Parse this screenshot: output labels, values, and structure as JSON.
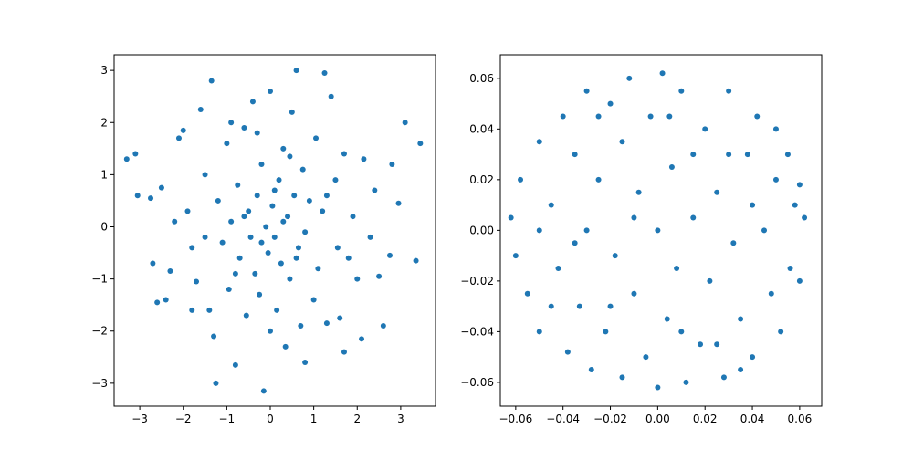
{
  "chart_data": [
    {
      "type": "scatter",
      "color": "#1f77b4",
      "x": [
        -3.3,
        -3.1,
        -3.05,
        -2.75,
        -2.5,
        -2.6,
        -2.7,
        -2.4,
        -2.3,
        -2.1,
        -2.0,
        -1.9,
        -1.8,
        -1.7,
        -1.6,
        -1.5,
        -1.4,
        -1.35,
        -1.3,
        -1.25,
        -1.2,
        -1.1,
        -1.0,
        -0.95,
        -0.9,
        -0.8,
        -0.75,
        -0.7,
        -0.6,
        -0.55,
        -0.5,
        -0.45,
        -0.4,
        -0.35,
        -0.3,
        -0.25,
        -0.2,
        -0.15,
        -0.1,
        -0.05,
        0.0,
        0.05,
        0.1,
        0.15,
        0.2,
        0.25,
        0.3,
        0.35,
        0.4,
        0.45,
        0.5,
        0.55,
        0.6,
        0.65,
        0.7,
        0.75,
        0.8,
        0.9,
        1.0,
        1.05,
        1.1,
        1.2,
        1.25,
        1.3,
        1.4,
        1.5,
        1.55,
        1.6,
        1.7,
        1.8,
        1.9,
        2.0,
        2.1,
        2.15,
        2.3,
        2.4,
        2.5,
        2.6,
        2.75,
        2.95,
        3.1,
        3.35,
        3.45,
        -0.6,
        0.3,
        -0.2,
        0.6,
        -0.8,
        0.1,
        -1.5,
        1.3,
        -0.3,
        0.8,
        -2.2,
        2.8,
        -1.8,
        1.7,
        -0.9,
        0.0,
        0.45
      ],
      "y": [
        1.3,
        1.4,
        0.6,
        0.55,
        0.75,
        -1.45,
        -0.7,
        -1.4,
        -0.85,
        1.7,
        1.85,
        0.3,
        -0.4,
        -1.05,
        2.25,
        1.0,
        -1.6,
        2.8,
        -2.1,
        -3.0,
        0.5,
        -0.3,
        1.6,
        -1.2,
        0.1,
        -2.65,
        0.8,
        -0.6,
        1.9,
        -1.7,
        0.3,
        -0.2,
        2.4,
        -0.9,
        0.6,
        -1.3,
        1.2,
        -3.15,
        0.0,
        -0.5,
        2.6,
        0.4,
        -0.2,
        -1.6,
        0.9,
        -0.7,
        1.5,
        -2.3,
        0.2,
        -1.0,
        2.2,
        0.6,
        3.0,
        -0.4,
        -1.9,
        1.1,
        -0.1,
        0.5,
        -1.4,
        1.7,
        -0.8,
        0.3,
        2.95,
        -1.85,
        2.5,
        0.9,
        -0.4,
        -1.75,
        1.4,
        -0.6,
        0.2,
        -1.0,
        -2.15,
        1.3,
        -0.2,
        0.7,
        -0.95,
        -1.9,
        -0.55,
        0.45,
        2.0,
        -0.65,
        1.6,
        0.2,
        0.1,
        -0.3,
        -0.6,
        -0.9,
        0.7,
        -0.2,
        0.6,
        1.8,
        -2.6,
        0.1,
        1.2,
        -1.6,
        -2.4,
        2.0,
        -2.0,
        1.35
      ],
      "xlim": [
        -3.59,
        3.8
      ],
      "ylim": [
        -3.44,
        3.3
      ],
      "xticks": [
        {
          "value": -3,
          "label": "−3"
        },
        {
          "value": -2,
          "label": "−2"
        },
        {
          "value": -1,
          "label": "−1"
        },
        0,
        1,
        2,
        3
      ],
      "yticks": [
        {
          "value": -3,
          "label": "−3"
        },
        {
          "value": -2,
          "label": "−2"
        },
        {
          "value": -1,
          "label": "−1"
        },
        0,
        1,
        2,
        3
      ]
    },
    {
      "type": "scatter",
      "color": "#1f77b4",
      "x": [
        -0.062,
        -0.06,
        -0.058,
        -0.055,
        -0.05,
        -0.05,
        -0.045,
        -0.042,
        -0.04,
        -0.038,
        -0.035,
        -0.033,
        -0.03,
        -0.03,
        -0.028,
        -0.025,
        -0.022,
        -0.02,
        -0.018,
        -0.015,
        -0.015,
        -0.012,
        -0.01,
        -0.008,
        -0.005,
        -0.003,
        0.0,
        0.0,
        0.002,
        0.004,
        0.006,
        0.008,
        0.01,
        0.012,
        0.015,
        0.018,
        0.02,
        0.022,
        0.025,
        0.028,
        0.03,
        0.032,
        0.035,
        0.038,
        0.04,
        0.042,
        0.045,
        0.048,
        0.05,
        0.052,
        0.055,
        0.056,
        0.058,
        0.06,
        0.062,
        0.06,
        -0.02,
        0.01,
        -0.035,
        0.03,
        -0.045,
        0.04,
        0.015,
        -0.01,
        0.025,
        -0.025,
        0.005,
        -0.05,
        0.035,
        0.05
      ],
      "y": [
        0.005,
        -0.01,
        0.02,
        -0.025,
        0.035,
        -0.04,
        0.01,
        -0.015,
        0.045,
        -0.048,
        0.03,
        -0.03,
        0.0,
        0.055,
        -0.055,
        0.02,
        -0.04,
        0.05,
        -0.01,
        0.035,
        -0.058,
        0.06,
        -0.025,
        0.015,
        -0.05,
        0.045,
        -0.062,
        0.0,
        0.062,
        -0.035,
        0.025,
        -0.015,
        0.055,
        -0.06,
        0.005,
        -0.045,
        0.04,
        -0.02,
        0.015,
        -0.058,
        0.055,
        -0.005,
        -0.035,
        0.03,
        -0.05,
        0.045,
        0.0,
        -0.025,
        0.02,
        -0.04,
        0.03,
        -0.015,
        0.01,
        -0.02,
        0.005,
        0.018,
        -0.03,
        -0.04,
        -0.005,
        0.03,
        -0.03,
        0.01,
        0.03,
        0.005,
        -0.045,
        0.045,
        0.045,
        0.0,
        -0.055,
        0.04
      ],
      "xlim": [
        -0.0665,
        0.0693
      ],
      "ylim": [
        -0.0694,
        0.0693
      ],
      "xticks": [
        {
          "value": -0.06,
          "label": "−0.06"
        },
        {
          "value": -0.04,
          "label": "−0.04"
        },
        {
          "value": -0.02,
          "label": "−0.02"
        },
        {
          "value": 0,
          "label": "0.00"
        },
        0.02,
        0.04,
        0.06
      ],
      "yticks": [
        {
          "value": -0.06,
          "label": "−0.06"
        },
        {
          "value": -0.04,
          "label": "−0.04"
        },
        {
          "value": -0.02,
          "label": "−0.02"
        },
        {
          "value": 0,
          "label": "0.00"
        },
        0.02,
        0.04,
        0.06
      ]
    }
  ]
}
